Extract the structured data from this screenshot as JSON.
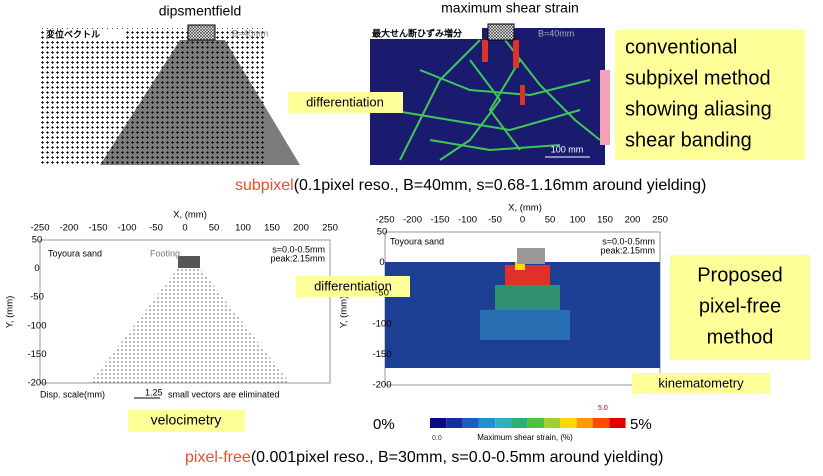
{
  "top": {
    "left": {
      "title": "dipsmentfield",
      "label": "変位ベクトル",
      "width_note": "B=40mm"
    },
    "right": {
      "title": "maximum shear strain",
      "label": "最大せん断ひずみ増分",
      "width_note": "B=40mm",
      "scale": "100 mm"
    },
    "arrow_label": "differentiation",
    "note": [
      "conventional",
      "subpixel method",
      "showing aliasing",
      "shear banding"
    ]
  },
  "top_caption": {
    "method": "subpixel",
    "detail": "(0.1pixel reso., B=40mm, s=0.68-1.16mm around yielding)"
  },
  "bottom": {
    "left": {
      "x_label": "X, (mm)",
      "y_label": "Y, (mm)",
      "x_ticks": [
        -250,
        -200,
        -150,
        -100,
        -50,
        0,
        50,
        100,
        150,
        200,
        250
      ],
      "y_ticks": [
        50,
        0,
        -50,
        -100,
        -150,
        -200
      ],
      "material": "Toyoura sand",
      "footing": "Footing",
      "range": "s=0.0-0.5mm",
      "peak": "peak:2.15mm",
      "scale_label": "Disp. scale(mm)",
      "scale_value": "1.25",
      "note": "small vectors are eliminated",
      "tag": "velocimetry"
    },
    "right": {
      "x_label": "X, (mm)",
      "y_label": "Y, (mm)",
      "x_ticks": [
        -250,
        -200,
        -150,
        -100,
        -50,
        0,
        50,
        100,
        150,
        200,
        250
      ],
      "y_ticks": [
        50,
        0,
        -50,
        -100,
        -150,
        -200
      ],
      "material": "Toyoura sand",
      "range": "s=0.0-0.5mm",
      "peak": "peak:2.15mm",
      "tag": "kinematometry",
      "colorbar": {
        "min": "0%",
        "max": "5%",
        "min_value": "0.0",
        "max_value": "5.0",
        "label": "Maximum shear strain, (%)"
      }
    },
    "arrow_label": "differentiation",
    "note": [
      "Proposed",
      "pixel-free",
      "method"
    ]
  },
  "bottom_caption": {
    "method": "pixel-free",
    "detail": "(0.001pixel reso., B=30mm, s=0.0-0.5mm around yielding)"
  }
}
